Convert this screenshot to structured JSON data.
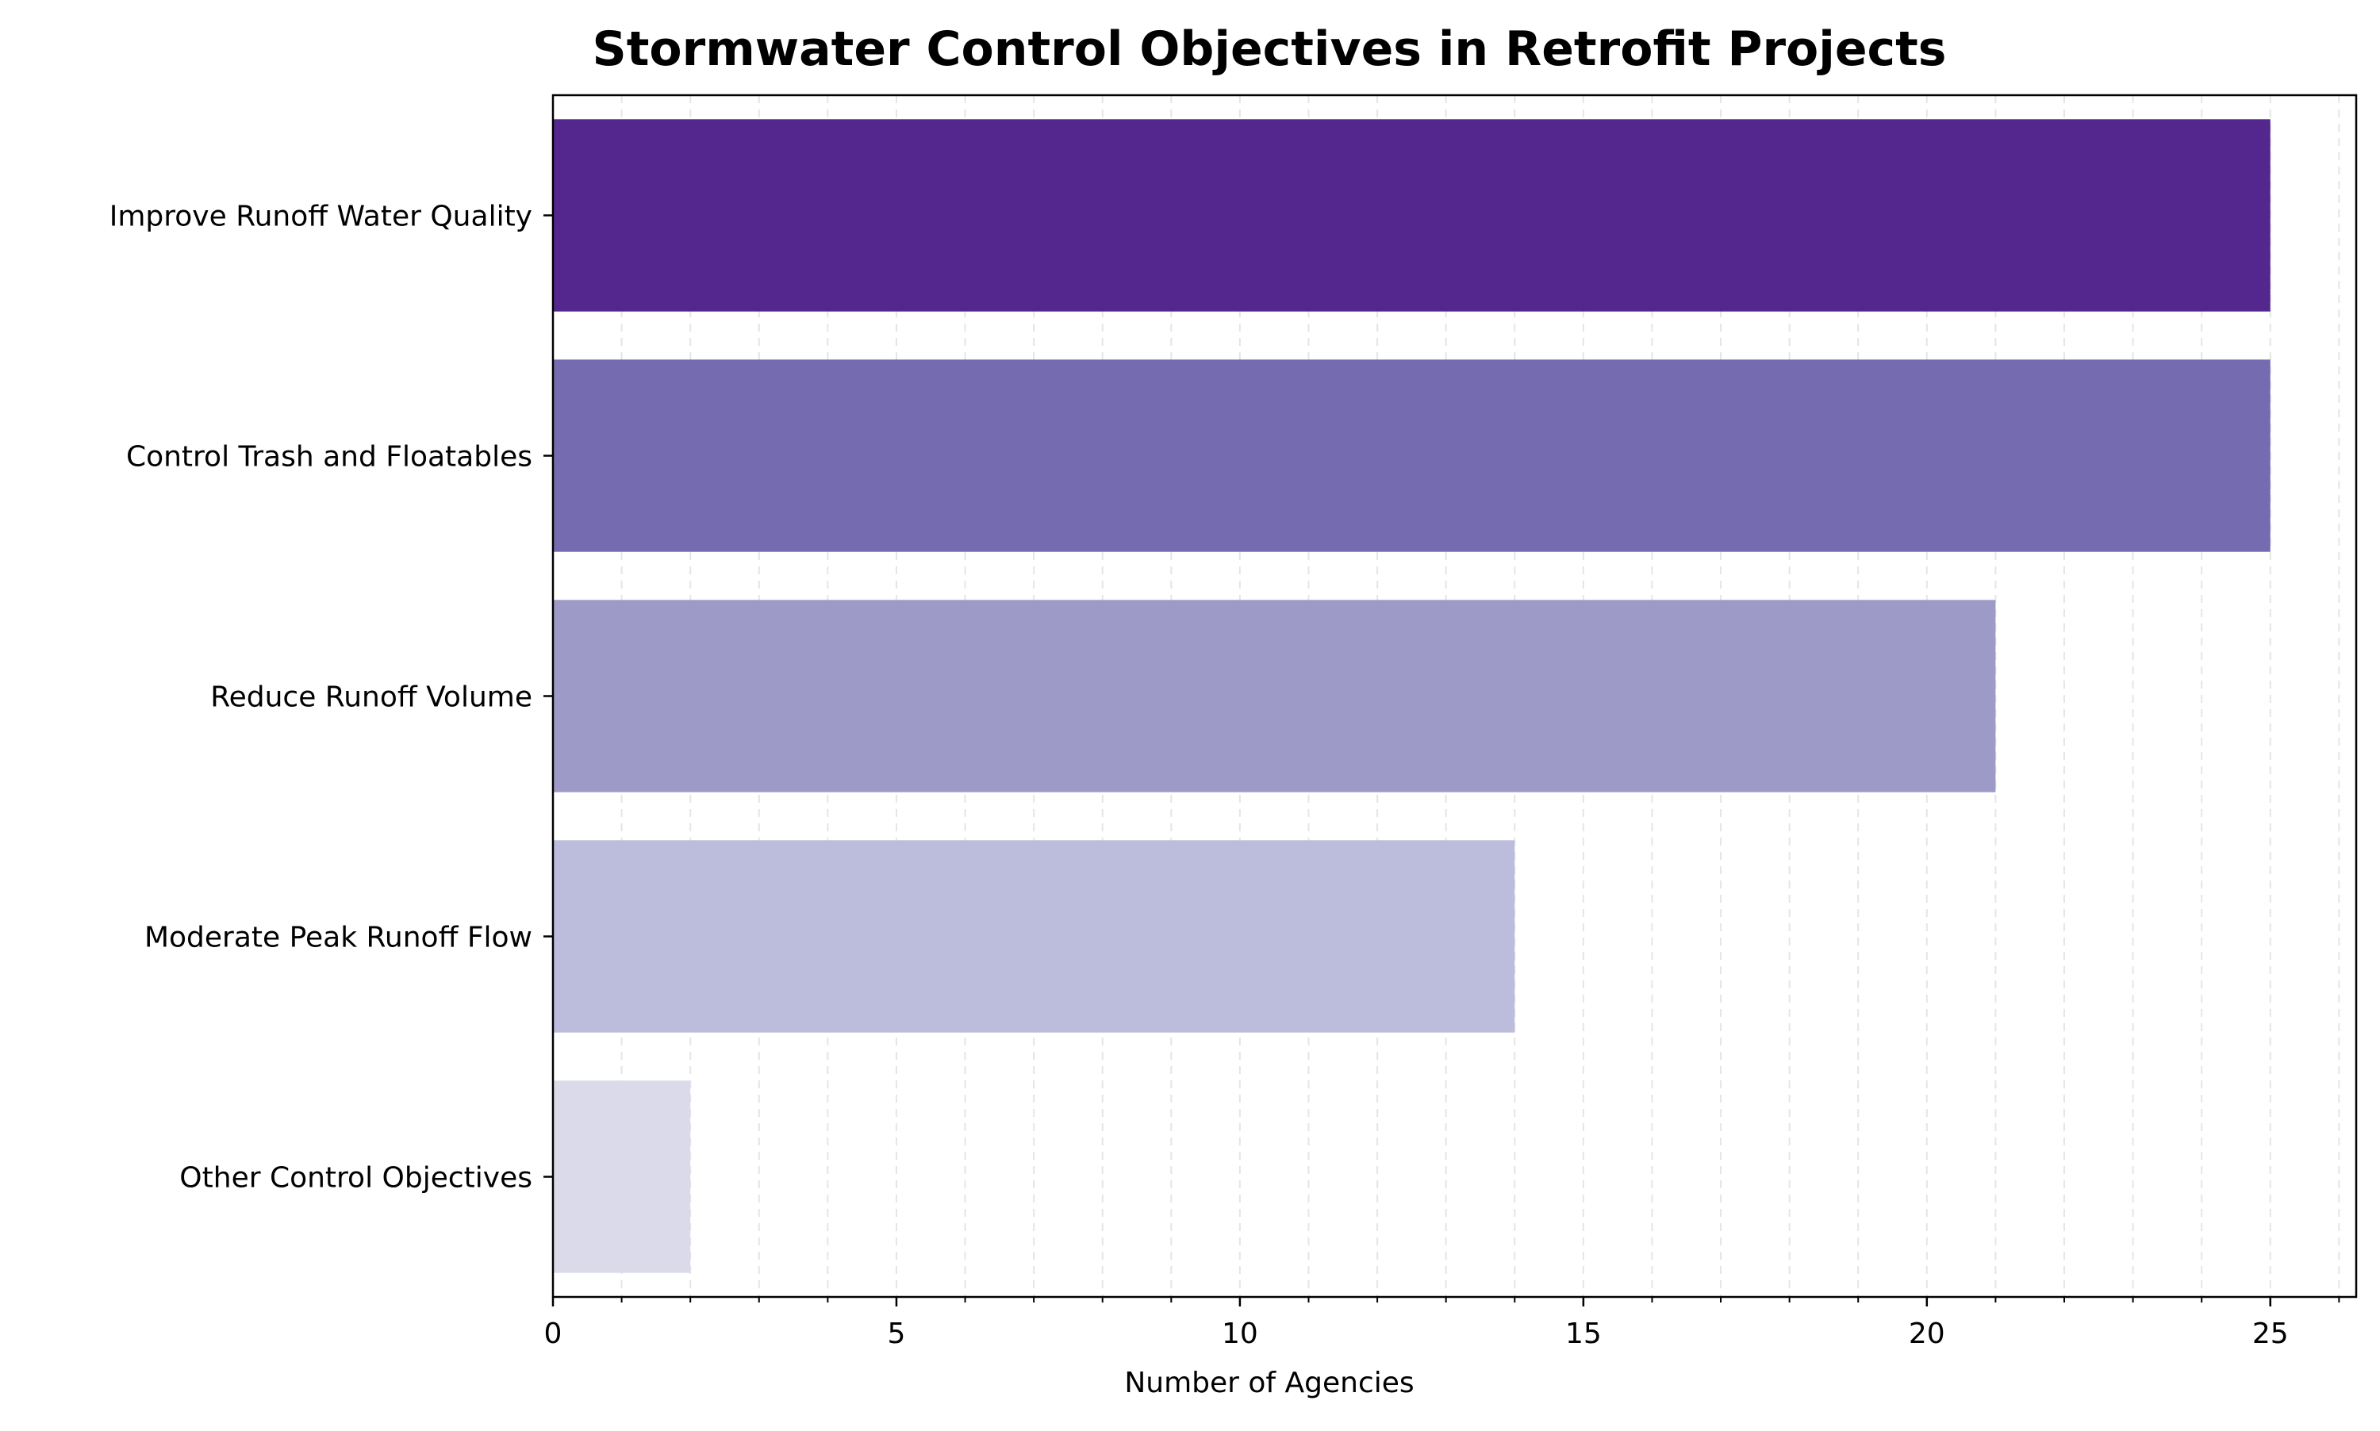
{
  "chart_data": {
    "type": "bar",
    "orientation": "horizontal",
    "title": "Stormwater Control Objectives in Retrofit Projects",
    "xlabel": "Number of Agencies",
    "ylabel": "",
    "categories": [
      "Improve Runoff Water Quality",
      "Control Trash and Floatables",
      "Reduce Runoff Volume",
      "Moderate Peak Runoff Flow",
      "Other Control Objectives"
    ],
    "values": [
      25,
      25,
      21,
      14,
      2
    ],
    "colors": [
      "#54278f",
      "#756bb1",
      "#9e9ac8",
      "#bcbddc",
      "#dadaeb"
    ],
    "xlim": [
      0,
      26.25
    ],
    "xticks": [
      0,
      5,
      10,
      15,
      20,
      25
    ],
    "xticks_minor_step": 1,
    "grid": "vertical dashed, minor and major",
    "legend": "none"
  }
}
